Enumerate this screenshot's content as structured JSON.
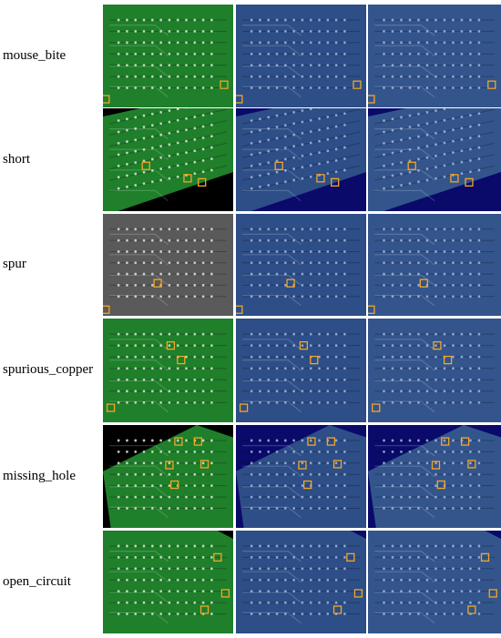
{
  "figure": {
    "rows": [
      {
        "label": "mouse_bite",
        "variant": "level"
      },
      {
        "label": "short",
        "variant": "tilt"
      },
      {
        "label": "spur",
        "variant": "level"
      },
      {
        "label": "spurious_copper",
        "variant": "level"
      },
      {
        "label": "missing_hole",
        "variant": "tilt2"
      },
      {
        "label": "open_circuit",
        "variant": "tilt3"
      }
    ],
    "columns": [
      {
        "style": "original"
      },
      {
        "style": "enhanced"
      },
      {
        "style": "detected"
      }
    ],
    "colors": {
      "green_board": "#1f7f2a",
      "gray_board": "#5a5a5a",
      "blue_board_a": "#2d4e86",
      "blue_board_b": "#33558c",
      "navy_background": "#0a0a6a",
      "box_orange": "#f5a623",
      "pad_light": "#d9e6d6"
    }
  }
}
